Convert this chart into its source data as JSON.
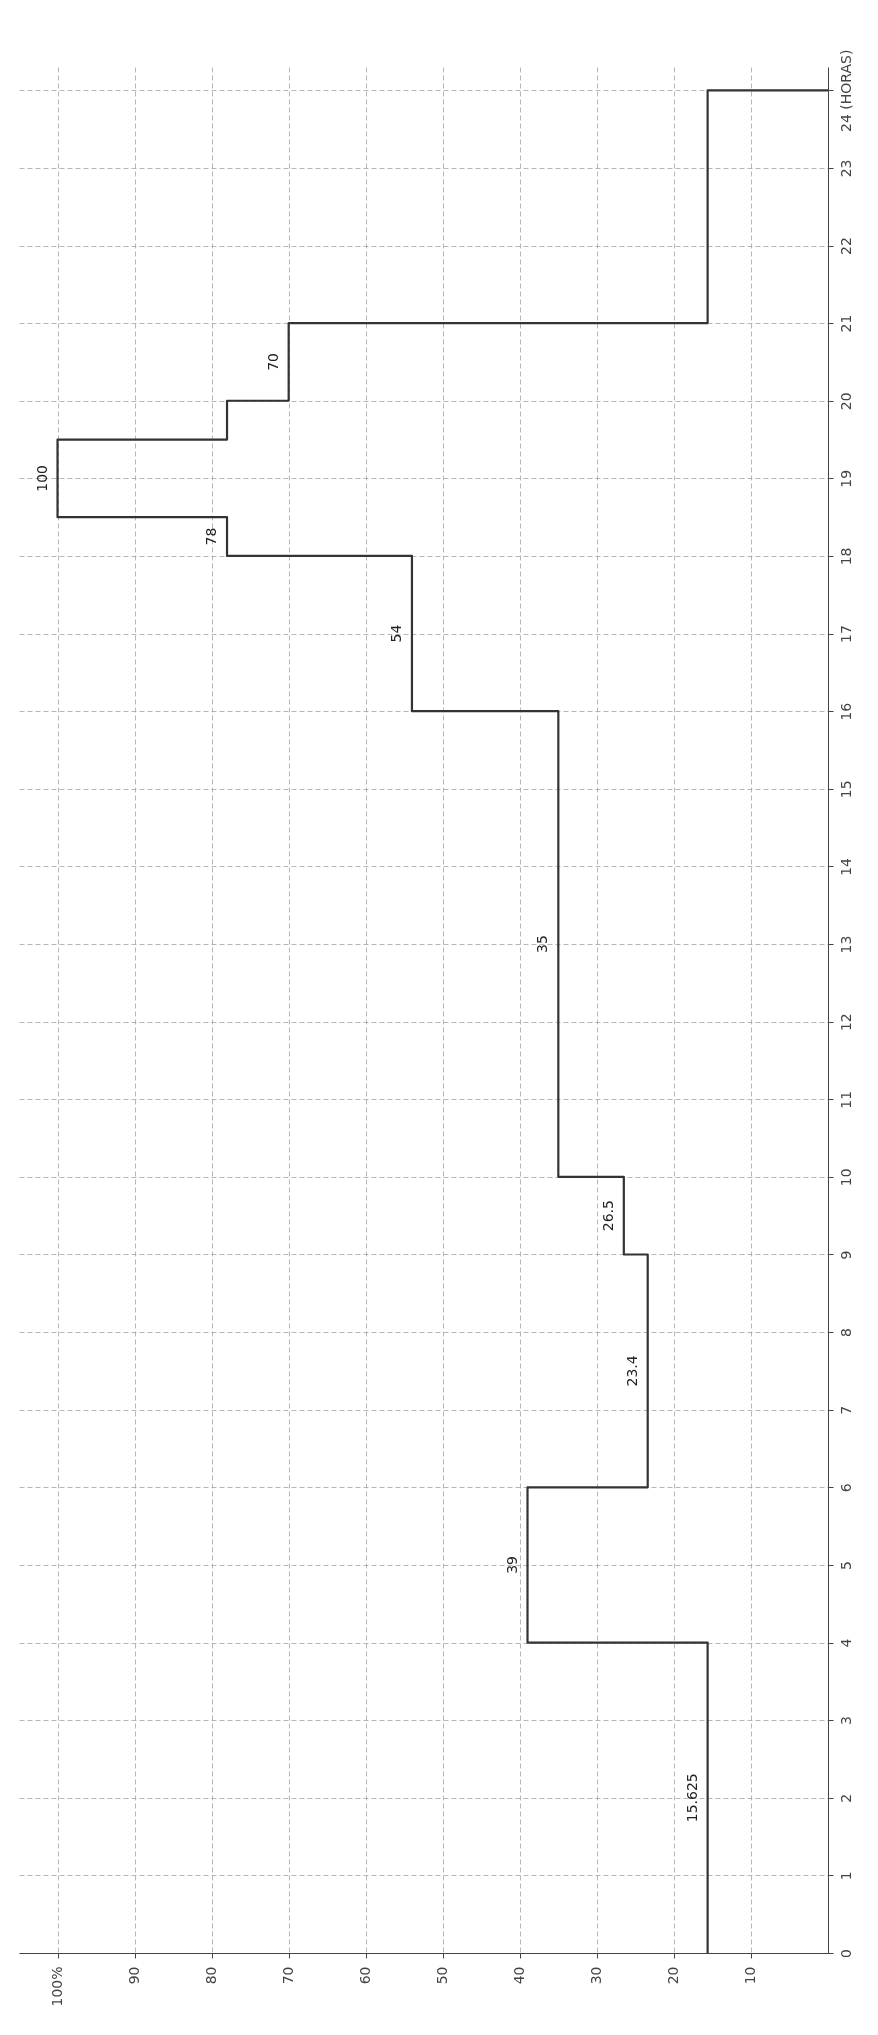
{
  "chart_data": {
    "type": "line",
    "series": [
      {
        "color": "#333333",
        "x": [
          15.625,
          15.625,
          39,
          39,
          23.4,
          23.4,
          26.5,
          26.5,
          35,
          35,
          54,
          54,
          78,
          78,
          100,
          100,
          78,
          78,
          70,
          70,
          15.625,
          15.625,
          0
        ],
        "values": [
          0,
          4,
          4,
          6,
          6,
          9,
          9,
          10,
          10,
          16,
          16,
          18,
          18,
          18.5,
          18.5,
          19.5,
          19.5,
          20,
          20,
          21,
          21,
          24,
          24
        ]
      }
    ],
    "xlim": [
      105,
      0
    ],
    "xticks": [
      10,
      20,
      30,
      40,
      50,
      60,
      70,
      80,
      90,
      {
        "value": 100,
        "label": "100%"
      }
    ],
    "ylim": [
      0,
      24.3
    ],
    "yticks": [
      0,
      1,
      2,
      3,
      4,
      5,
      6,
      7,
      8,
      9,
      10,
      11,
      12,
      13,
      14,
      15,
      16,
      17,
      18,
      19,
      20,
      21,
      22,
      23,
      {
        "value": 24,
        "label": "24 (HORAS)"
      }
    ],
    "annotations": [
      {
        "text": "15.625",
        "x": 15.625,
        "y": 2
      },
      {
        "text": "39",
        "x": 39,
        "y": 5
      },
      {
        "text": "23.4",
        "x": 23.4,
        "y": 7.5
      },
      {
        "text": "26.5",
        "x": 26.5,
        "y": 9.5
      },
      {
        "text": "35",
        "x": 35,
        "y": 13
      },
      {
        "text": "54",
        "x": 54,
        "y": 17
      },
      {
        "text": "78",
        "x": 78,
        "y": 18.25
      },
      {
        "text": "100",
        "x": 100,
        "y": 19
      },
      {
        "text": "70",
        "x": 70,
        "y": 20.5
      }
    ],
    "grid": true
  }
}
